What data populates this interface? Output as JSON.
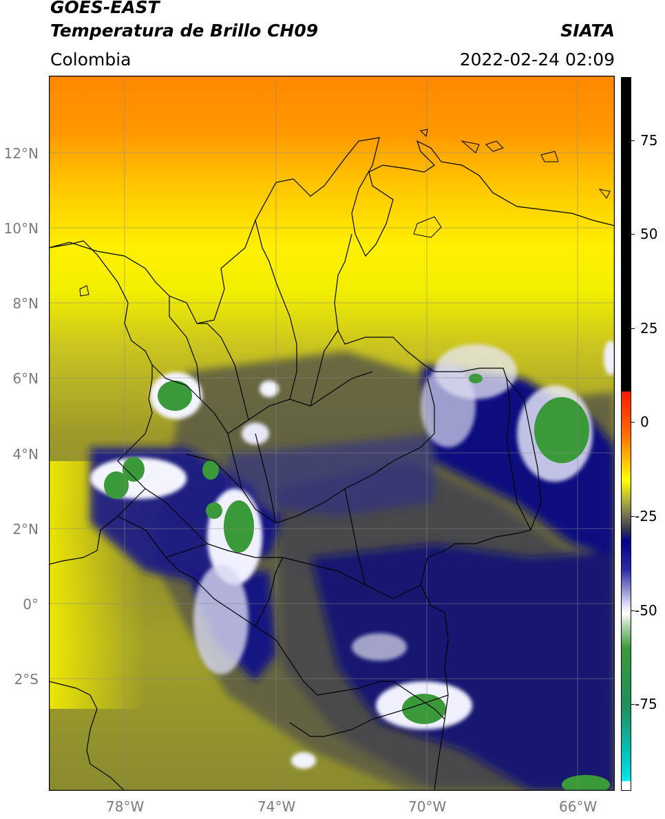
{
  "header": {
    "title_line1": "GOES-EAST",
    "title_line2": "Temperatura de Brillo CH09",
    "region": "Colombia",
    "agency": "SIATA",
    "datetime": "2022-02-24 02:09"
  },
  "map": {
    "lat_ticks": [
      "12°N",
      "10°N",
      "8°N",
      "6°N",
      "4°N",
      "2°N",
      "0°",
      "2°S"
    ],
    "lon_ticks": [
      "78°W",
      "74°W",
      "70°W",
      "66°W"
    ],
    "extent": {
      "lon_min": -80,
      "lon_max": -65,
      "lat_min": -5,
      "lat_max": 14
    }
  },
  "colorbar": {
    "ticks": [
      "75",
      "50",
      "25",
      "0",
      "-25",
      "-50",
      "-75"
    ],
    "vmin": -100,
    "vmax": 90,
    "colors": {
      "black": "#000000",
      "red": "#ff2a00",
      "orange": "#ff8c00",
      "yellow": "#ffff00",
      "olive": "#8f8f2a",
      "gray": "#4a4a4a",
      "navy": "#000080",
      "white": "#ffffff",
      "green": "#2f8f2f",
      "cyan": "#00e5e5"
    }
  }
}
